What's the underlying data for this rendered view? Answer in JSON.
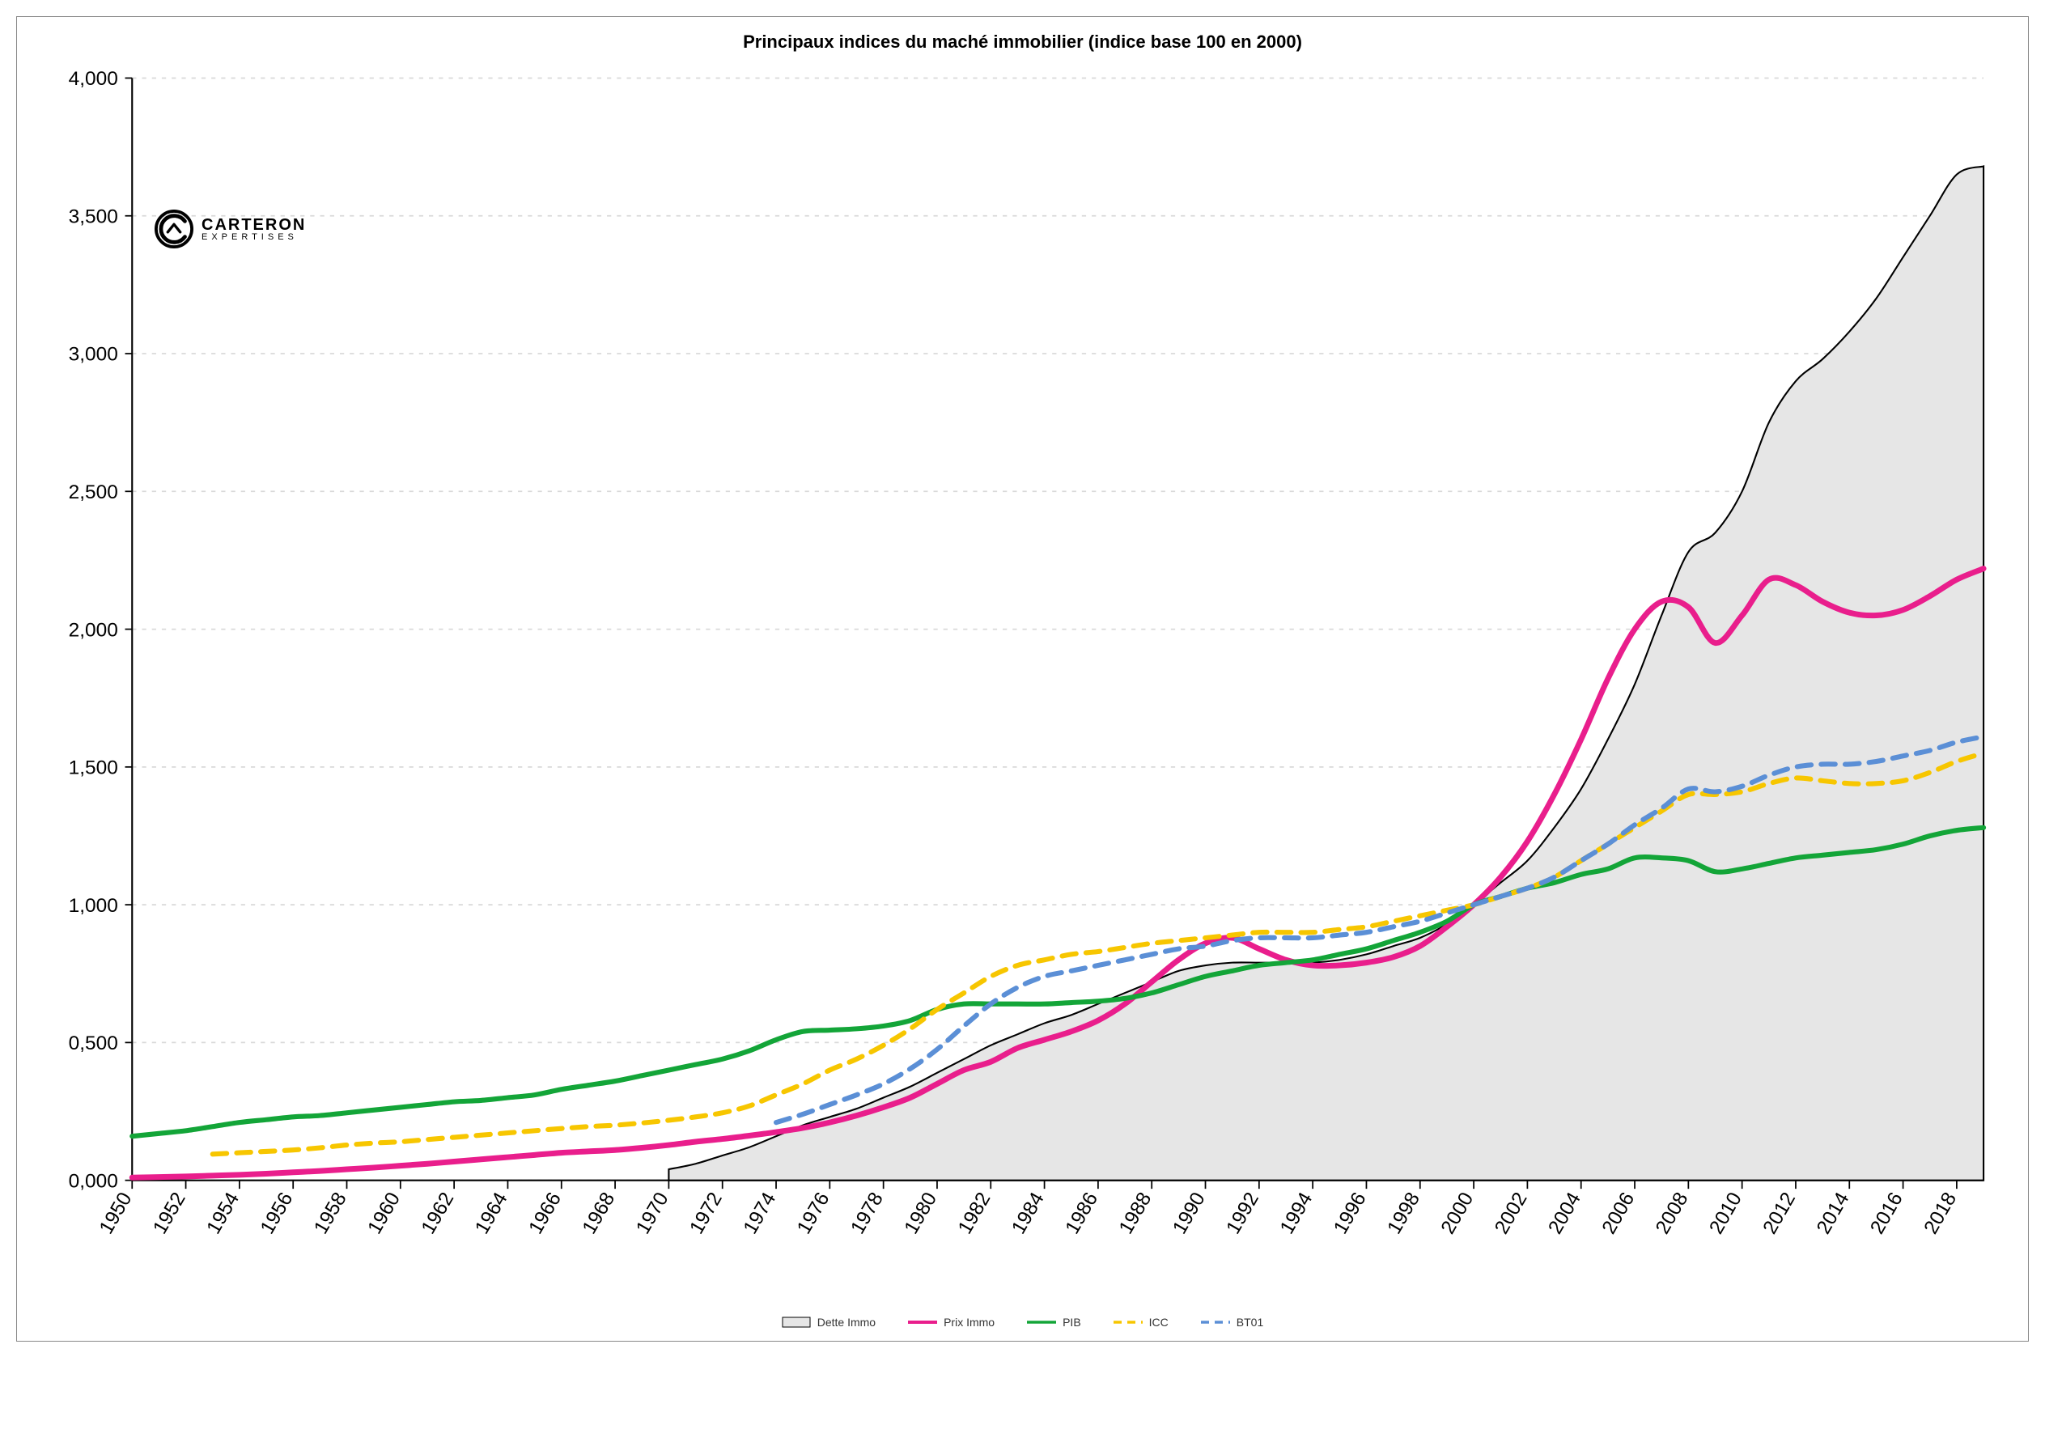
{
  "chart": {
    "title": "Principaux indices du maché immobilier (indice base 100 en 2000)",
    "title_fontsize": 22,
    "background_color": "#ffffff",
    "border_color": "#888888",
    "grid_color": "#d9d9d9",
    "axis_color": "#000000",
    "x_axis": {
      "min_year": 1950,
      "max_year": 2019,
      "tick_start": 1950,
      "tick_end": 2018,
      "tick_step": 2,
      "label_rotation": -60,
      "label_fontsize": 14
    },
    "y_axis": {
      "min": 0,
      "max": 4000,
      "tick_step": 500,
      "label_fontsize": 14,
      "label_format": "0,000"
    },
    "years": [
      1950,
      1951,
      1952,
      1953,
      1954,
      1955,
      1956,
      1957,
      1958,
      1959,
      1960,
      1961,
      1962,
      1963,
      1964,
      1965,
      1966,
      1967,
      1968,
      1969,
      1970,
      1971,
      1972,
      1973,
      1974,
      1975,
      1976,
      1977,
      1978,
      1979,
      1980,
      1981,
      1982,
      1983,
      1984,
      1985,
      1986,
      1987,
      1988,
      1989,
      1990,
      1991,
      1992,
      1993,
      1994,
      1995,
      1996,
      1997,
      1998,
      1999,
      2000,
      2001,
      2002,
      2003,
      2004,
      2005,
      2006,
      2007,
      2008,
      2009,
      2010,
      2011,
      2012,
      2013,
      2014,
      2015,
      2016,
      2017,
      2018,
      2019
    ],
    "series": [
      {
        "key": "dette_immo",
        "label": "Dette Immo",
        "type": "area",
        "fill_color": "#e6e6e6",
        "stroke_color": "#000000",
        "stroke_width": 1.2,
        "values": [
          null,
          null,
          null,
          null,
          null,
          null,
          null,
          null,
          null,
          null,
          null,
          null,
          null,
          null,
          null,
          null,
          null,
          null,
          null,
          null,
          40,
          60,
          90,
          120,
          160,
          200,
          230,
          260,
          300,
          340,
          390,
          440,
          490,
          530,
          570,
          600,
          640,
          680,
          720,
          760,
          780,
          790,
          790,
          790,
          790,
          800,
          820,
          850,
          880,
          930,
          1000,
          1080,
          1160,
          1280,
          1420,
          1600,
          1800,
          2050,
          2280,
          2350,
          2500,
          2750,
          2900,
          2980,
          3080,
          3200,
          3350,
          3500,
          3650,
          3680
        ]
      },
      {
        "key": "prix_immo",
        "label": "Prix Immo",
        "type": "line",
        "color": "#e91e8c",
        "stroke_width": 4,
        "dash": null,
        "values": [
          10,
          12,
          14,
          17,
          20,
          24,
          29,
          34,
          40,
          46,
          53,
          60,
          68,
          76,
          84,
          92,
          100,
          105,
          110,
          118,
          128,
          140,
          150,
          162,
          175,
          190,
          210,
          235,
          265,
          300,
          350,
          400,
          430,
          480,
          510,
          540,
          580,
          640,
          720,
          800,
          860,
          880,
          840,
          800,
          780,
          780,
          790,
          810,
          850,
          920,
          1000,
          1100,
          1230,
          1400,
          1600,
          1820,
          2000,
          2100,
          2080,
          1950,
          2050,
          2180,
          2160,
          2100,
          2060,
          2050,
          2070,
          2120,
          2180,
          2220
        ]
      },
      {
        "key": "pib",
        "label": "PIB",
        "type": "line",
        "color": "#13a538",
        "stroke_width": 3.5,
        "dash": null,
        "values": [
          160,
          170,
          180,
          195,
          210,
          220,
          230,
          235,
          245,
          255,
          265,
          275,
          285,
          290,
          300,
          310,
          330,
          345,
          360,
          380,
          400,
          420,
          440,
          470,
          510,
          540,
          545,
          550,
          560,
          580,
          620,
          640,
          640,
          640,
          640,
          645,
          650,
          660,
          680,
          710,
          740,
          760,
          780,
          790,
          800,
          820,
          840,
          870,
          900,
          940,
          1000,
          1030,
          1060,
          1080,
          1110,
          1130,
          1170,
          1170,
          1160,
          1120,
          1130,
          1150,
          1170,
          1180,
          1190,
          1200,
          1220,
          1250,
          1270,
          1280
        ]
      },
      {
        "key": "icc",
        "label": "ICC",
        "type": "line",
        "color": "#f7c600",
        "stroke_width": 3.5,
        "dash": "10,7",
        "values": [
          null,
          null,
          null,
          95,
          100,
          105,
          110,
          118,
          128,
          135,
          140,
          148,
          156,
          164,
          172,
          180,
          188,
          195,
          200,
          208,
          218,
          230,
          245,
          270,
          310,
          350,
          400,
          440,
          490,
          550,
          620,
          680,
          740,
          780,
          800,
          820,
          830,
          845,
          860,
          870,
          880,
          890,
          900,
          900,
          900,
          910,
          920,
          940,
          960,
          980,
          1000,
          1030,
          1060,
          1100,
          1160,
          1220,
          1280,
          1340,
          1400,
          1400,
          1410,
          1440,
          1460,
          1450,
          1440,
          1440,
          1450,
          1480,
          1520,
          1550
        ]
      },
      {
        "key": "bt01",
        "label": "BT01",
        "type": "line",
        "color": "#5b8fd6",
        "stroke_width": 3.5,
        "dash": "10,7",
        "values": [
          null,
          null,
          null,
          null,
          null,
          null,
          null,
          null,
          null,
          null,
          null,
          null,
          null,
          null,
          null,
          null,
          null,
          null,
          null,
          null,
          null,
          null,
          null,
          null,
          210,
          240,
          275,
          310,
          350,
          405,
          475,
          560,
          640,
          700,
          740,
          760,
          780,
          800,
          820,
          840,
          850,
          870,
          880,
          880,
          880,
          890,
          900,
          920,
          940,
          970,
          1000,
          1030,
          1060,
          1100,
          1160,
          1220,
          1290,
          1350,
          1420,
          1410,
          1430,
          1470,
          1500,
          1510,
          1510,
          1520,
          1540,
          1560,
          1590,
          1610
        ]
      }
    ],
    "legend": {
      "position": "bottom",
      "items": [
        "Dette Immo",
        "Prix Immo",
        "PIB",
        "ICC",
        "BT01"
      ],
      "fontsize": 14
    },
    "logo": {
      "line1": "CARTERON",
      "line2": "EXPERTISES"
    }
  }
}
